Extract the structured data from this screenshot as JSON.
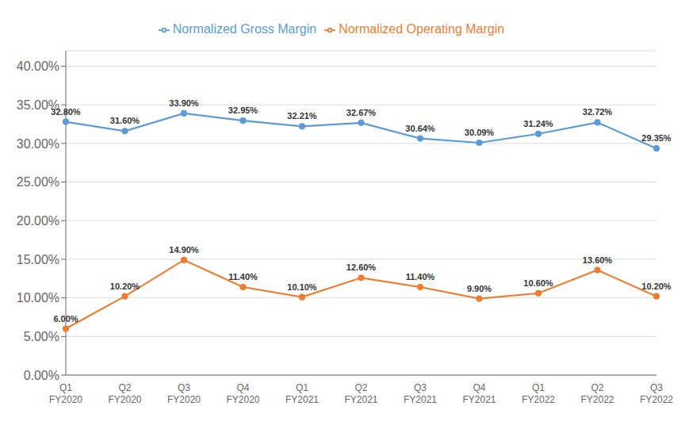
{
  "chart_data": {
    "type": "line",
    "categories": [
      "Q1\nFY2020",
      "Q2\nFY2020",
      "Q3\nFY2020",
      "Q4\nFY2020",
      "Q1\nFY2021",
      "Q2\nFY2021",
      "Q3\nFY2021",
      "Q4\nFY2021",
      "Q1\nFY2022",
      "Q2\nFY2022",
      "Q3\nFY2022"
    ],
    "series": [
      {
        "name": "Normalized Gross Margin",
        "color": "#5B9BD5",
        "marker": "circle",
        "values": [
          32.8,
          31.6,
          33.9,
          32.95,
          32.21,
          32.67,
          30.64,
          30.09,
          31.24,
          32.72,
          29.35
        ],
        "value_labels": [
          "32.80%",
          "31.60%",
          "33.90%",
          "32.95%",
          "32.21%",
          "32.67%",
          "30.64%",
          "30.09%",
          "31.24%",
          "32.72%",
          "29.35%"
        ]
      },
      {
        "name": "Normalized Operating Margin",
        "color": "#ED7D31",
        "marker": "circle",
        "values": [
          6.0,
          10.2,
          14.9,
          11.4,
          10.1,
          12.6,
          11.4,
          9.9,
          10.6,
          13.6,
          10.2
        ],
        "value_labels": [
          "6.00%",
          "10.20%",
          "14.90%",
          "11.40%",
          "10.10%",
          "12.60%",
          "11.40%",
          "9.90%",
          "10.60%",
          "13.60%",
          "10.20%"
        ]
      }
    ],
    "ylim": [
      0.0,
      42.0
    ],
    "yticks": [
      {
        "value": 0.0,
        "label": "0.00%"
      },
      {
        "value": 5.0,
        "label": "5.00%"
      },
      {
        "value": 10.0,
        "label": "10.00%"
      },
      {
        "value": 15.0,
        "label": "15.00%"
      },
      {
        "value": 20.0,
        "label": "20.00%"
      },
      {
        "value": 25.0,
        "label": "25.00%"
      },
      {
        "value": 30.0,
        "label": "30.00%"
      },
      {
        "value": 35.0,
        "label": "35.00%"
      },
      {
        "value": 40.0,
        "label": "40.00%"
      }
    ],
    "grid": true,
    "legend": "top",
    "data_labels": true
  }
}
